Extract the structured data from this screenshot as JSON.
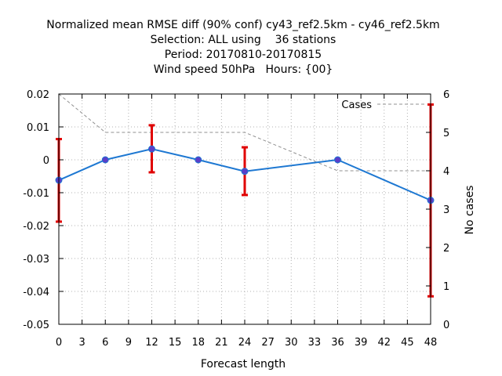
{
  "chart_data": {
    "type": "line",
    "title_lines": [
      "Normalized mean RMSE diff (90% conf) cy43_ref2.5km - cy46_ref2.5km",
      "Selection: ALL using    36 stations",
      "Period: 20170810-20170815",
      "Wind speed 50hPa   Hours: {00}"
    ],
    "xlabel": "Forecast length",
    "ylabel": "",
    "y2label": "No cases",
    "xlim": [
      0,
      48
    ],
    "ylim": [
      -0.05,
      0.02
    ],
    "y2lim": [
      0,
      6
    ],
    "x_ticks": [
      "0",
      "3",
      "6",
      "9",
      "12",
      "15",
      "18",
      "21",
      "24",
      "27",
      "30",
      "33",
      "36",
      "39",
      "42",
      "45",
      "48"
    ],
    "y_ticks": [
      "0.02",
      "0.01",
      "0",
      "-0.01",
      "-0.02",
      "-0.03",
      "-0.04",
      "-0.05"
    ],
    "y2_ticks": [
      "6",
      "5",
      "4",
      "3",
      "2",
      "1",
      "0"
    ],
    "grid": true,
    "series": [
      {
        "type": "line-errorbar",
        "color": "#1e78d2",
        "marker_color": "#5a3ec8",
        "errorbar_color": "#e00000",
        "x": [
          0,
          6,
          12,
          18,
          24,
          36,
          48
        ],
        "y": [
          -0.0062,
          0.0,
          0.0033,
          0.0,
          -0.0035,
          0.0,
          -0.0123
        ],
        "err_low": [
          -0.0188,
          0.0,
          -0.0038,
          0.0,
          -0.0107,
          0.0,
          -0.0415
        ],
        "err_high": [
          0.0063,
          0.0,
          0.0105,
          0.0,
          0.0038,
          0.0,
          0.0168
        ]
      },
      {
        "name": "Cases",
        "type": "line-dashed",
        "axis": "y2",
        "color": "#909090",
        "x": [
          0,
          6,
          12,
          18,
          24,
          36,
          48
        ],
        "y": [
          6,
          5,
          5,
          5,
          5,
          4,
          4
        ]
      }
    ],
    "legend": {
      "position": "top-right",
      "label": "Cases"
    }
  }
}
